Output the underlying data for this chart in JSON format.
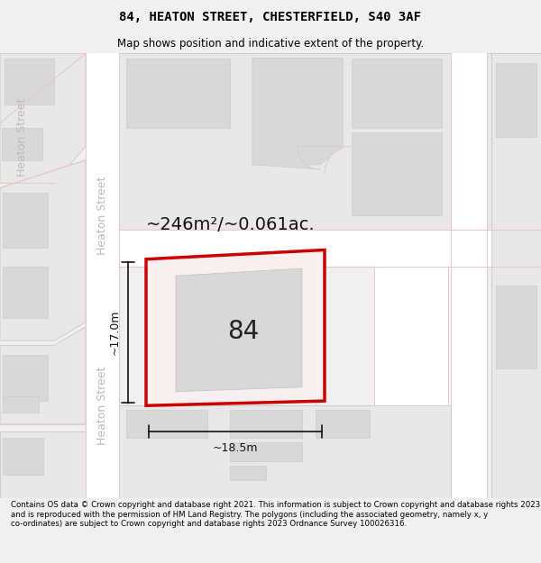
{
  "title": "84, HEATON STREET, CHESTERFIELD, S40 3AF",
  "subtitle": "Map shows position and indicative extent of the property.",
  "footer": "Contains OS data © Crown copyright and database right 2021. This information is subject to Crown copyright and database rights 2023 and is reproduced with the permission of HM Land Registry. The polygons (including the associated geometry, namely x, y co-ordinates) are subject to Crown copyright and database rights 2023 Ordnance Survey 100026316.",
  "area_label": "~246m²/~0.061ac.",
  "width_label": "~18.5m",
  "height_label": "~17.0m",
  "number_label": "84",
  "bg_color": "#f0f0f0",
  "map_bg": "#f8f8f8",
  "block_fill": "#e8e8e8",
  "block_edge": "#cccccc",
  "inner_fill": "#d8d8d8",
  "road_fill": "#ffffff",
  "road_line": "#e8c8c8",
  "prop_fill": "#f8f0f0",
  "prop_edge": "#cc0000",
  "dim_color": "#111111",
  "street_color": "#bbbbbb",
  "title_fontsize": 10,
  "subtitle_fontsize": 8.5,
  "footer_fontsize": 6.2,
  "area_fontsize": 14,
  "number_fontsize": 20,
  "dim_fontsize": 9,
  "street_fontsize": 9
}
